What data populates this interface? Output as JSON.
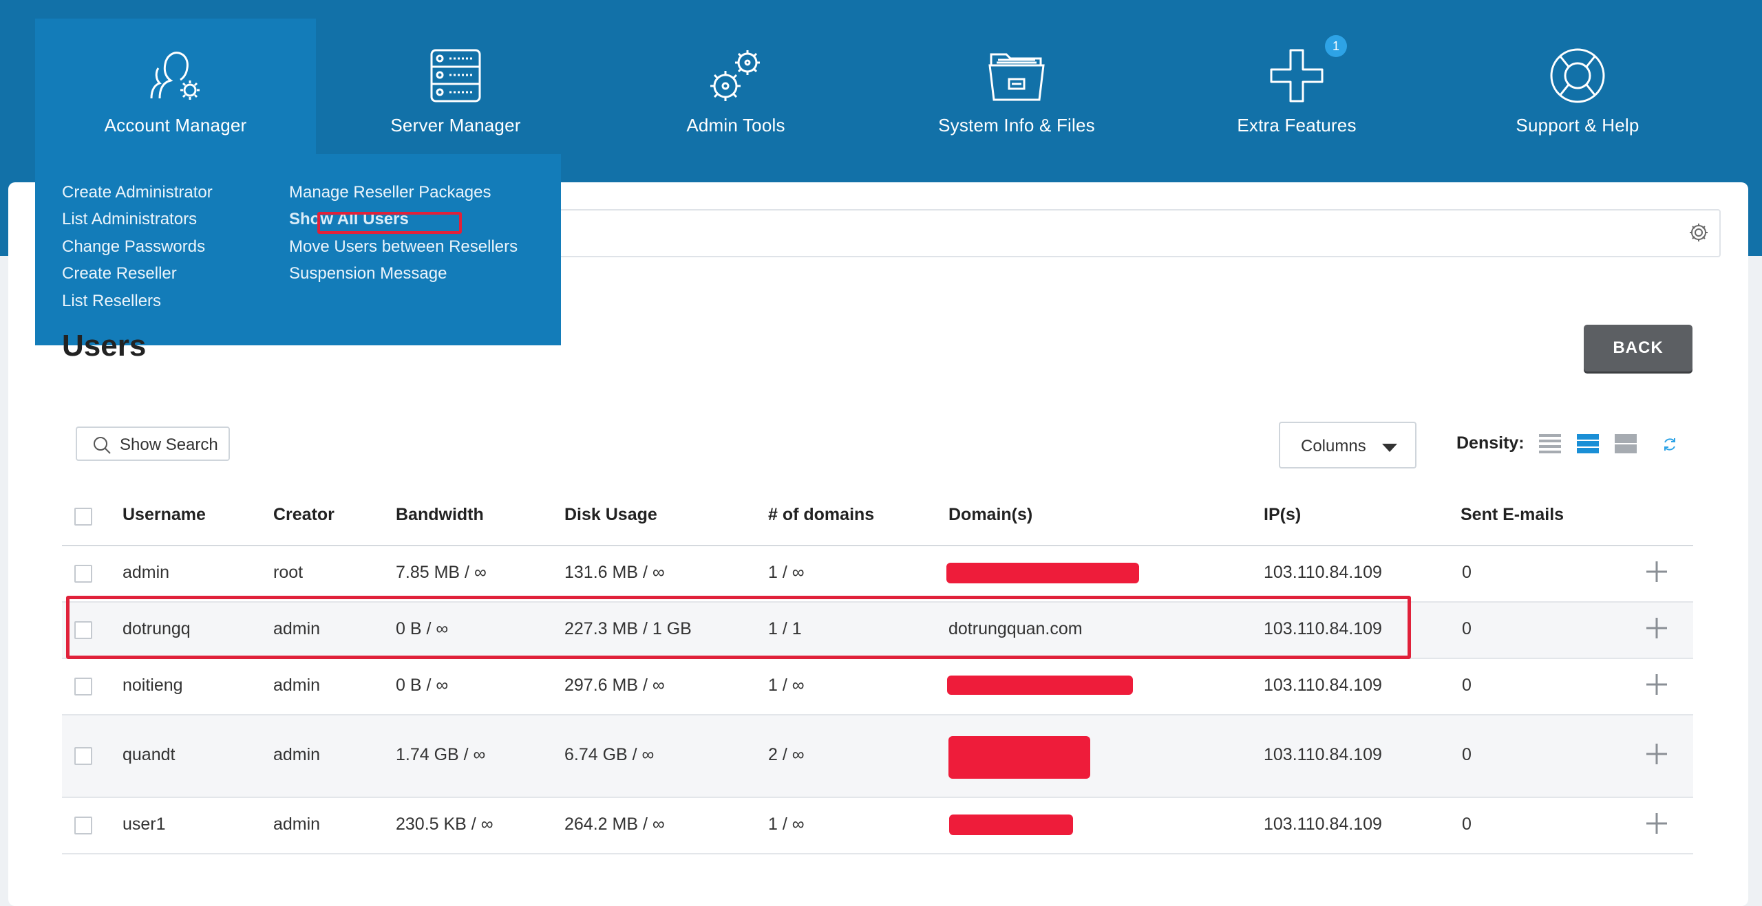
{
  "nav": {
    "items": [
      {
        "label": "Account Manager",
        "icon": "user-gear-icon"
      },
      {
        "label": "Server Manager",
        "icon": "server-icon"
      },
      {
        "label": "Admin Tools",
        "icon": "gears-icon"
      },
      {
        "label": "System Info & Files",
        "icon": "folder-icon"
      },
      {
        "label": "Extra Features",
        "icon": "plus-icon",
        "badge": "1"
      },
      {
        "label": "Support & Help",
        "icon": "lifebuoy-icon"
      }
    ]
  },
  "dropdown": {
    "col1": [
      "Create Administrator",
      "List Administrators",
      "Change Passwords",
      "Create Reseller",
      "List Resellers"
    ],
    "col2": [
      "Manage Reseller Packages",
      "Show All Users",
      "Move Users between Resellers",
      "Suspension Message"
    ]
  },
  "page": {
    "title": "Users",
    "back_label": "BACK"
  },
  "toolbar": {
    "show_search": "Show Search",
    "columns": "Columns",
    "density_label": "Density:"
  },
  "table": {
    "headers": [
      "Username",
      "Creator",
      "Bandwidth",
      "Disk Usage",
      "# of domains",
      "Domain(s)",
      "IP(s)",
      "Sent E-mails"
    ],
    "rows": [
      {
        "username": "admin",
        "creator": "root",
        "bandwidth": "7.85 MB / ∞",
        "disk": "131.6 MB / ∞",
        "domains": "1 / ∞",
        "domain": "",
        "ip": "103.110.84.109",
        "sent": "0"
      },
      {
        "username": "dotrungq",
        "creator": "admin",
        "bandwidth": "0 B / ∞",
        "disk": "227.3 MB / 1 GB",
        "domains": "1 / 1",
        "domain": "dotrungquan.com",
        "ip": "103.110.84.109",
        "sent": "0"
      },
      {
        "username": "noitieng",
        "creator": "admin",
        "bandwidth": "0 B / ∞",
        "disk": "297.6 MB / ∞",
        "domains": "1 / ∞",
        "domain": "",
        "ip": "103.110.84.109",
        "sent": "0"
      },
      {
        "username": "quandt",
        "creator": "admin",
        "bandwidth": "1.74 GB / ∞",
        "disk": "6.74 GB / ∞",
        "domains": "2 / ∞",
        "domain": "",
        "ip": "103.110.84.109",
        "sent": "0"
      },
      {
        "username": "user1",
        "creator": "admin",
        "bandwidth": "230.5 KB / ∞",
        "disk": "264.2 MB / ∞",
        "domains": "1 / ∞",
        "domain": "",
        "ip": "103.110.84.109",
        "sent": "0"
      }
    ]
  },
  "colors": {
    "brand": "#1271a8",
    "nav_active": "#137cb9",
    "highlight": "#e0213a",
    "redaction": "#ee1c3a"
  }
}
